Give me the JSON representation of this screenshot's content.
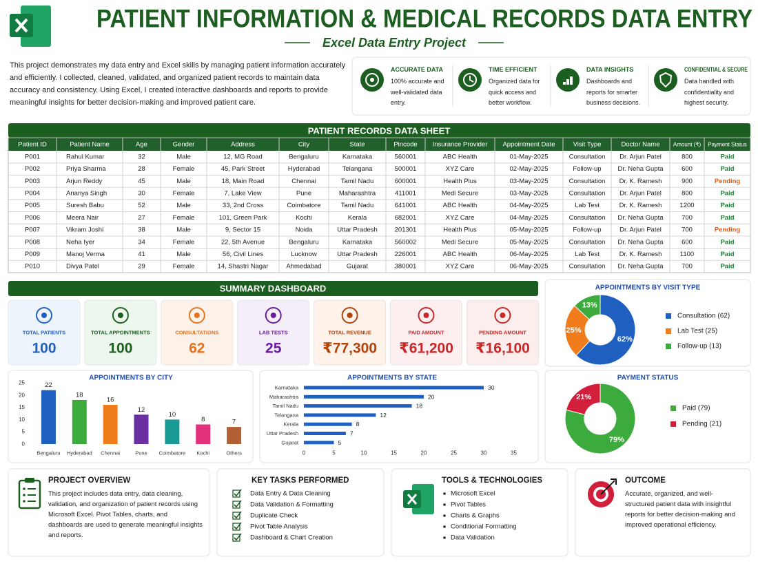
{
  "header": {
    "title": "PATIENT INFORMATION & MEDICAL RECORDS DATA ENTRY",
    "subtitle": "Excel Data Entry Project"
  },
  "intro": "This project demonstrates my data entry and Excel skills by managing patient information accurately and efficiently. I collected, cleaned, validated, and organized patient records to maintain data accuracy and consistency. Using Excel, I created interactive dashboards and reports to provide meaningful insights for better decision-making and improved patient care.",
  "features": [
    {
      "title": "ACCURATE DATA",
      "text": "100% accurate and well-validated data entry."
    },
    {
      "title": "TIME EFFICIENT",
      "text": "Organized data for quick access and better workflow."
    },
    {
      "title": "DATA INSIGHTS",
      "text": "Dashboards and reports for smarter business decisions."
    },
    {
      "title": "CONFIDENTIAL & SECURE",
      "text": "Data handled with confidentiality and highest security."
    }
  ],
  "table": {
    "title": "PATIENT RECORDS DATA SHEET",
    "columns": [
      "Patient ID",
      "Patient Name",
      "Age",
      "Gender",
      "Address",
      "City",
      "State",
      "Pincode",
      "Insurance Provider",
      "Appointment Date",
      "Visit Type",
      "Doctor Name",
      "Amount (₹)",
      "Payment Status"
    ],
    "rows": [
      [
        "P001",
        "Rahul Kumar",
        32,
        "Male",
        "12, MG Road",
        "Bengaluru",
        "Karnataka",
        560001,
        "ABC Health",
        "01-May-2025",
        "Consultation",
        "Dr. Arjun Patel",
        800,
        "Paid"
      ],
      [
        "P002",
        "Priya Sharma",
        28,
        "Female",
        "45, Park Street",
        "Hyderabad",
        "Telangana",
        500001,
        "XYZ Care",
        "02-May-2025",
        "Follow-up",
        "Dr. Neha Gupta",
        600,
        "Paid"
      ],
      [
        "P003",
        "Arjun Reddy",
        45,
        "Male",
        "18, Main Road",
        "Chennai",
        "Tamil Nadu",
        600001,
        "Health Plus",
        "03-May-2025",
        "Consultation",
        "Dr. K. Ramesh",
        900,
        "Pending"
      ],
      [
        "P004",
        "Ananya Singh",
        30,
        "Female",
        "7, Lake View",
        "Pune",
        "Maharashtra",
        411001,
        "Medi Secure",
        "03-May-2025",
        "Consultation",
        "Dr. Arjun Patel",
        800,
        "Paid"
      ],
      [
        "P005",
        "Suresh Babu",
        52,
        "Male",
        "33, 2nd Cross",
        "Coimbatore",
        "Tamil Nadu",
        641001,
        "ABC Health",
        "04-May-2025",
        "Lab Test",
        "Dr. K. Ramesh",
        1200,
        "Paid"
      ],
      [
        "P006",
        "Meera Nair",
        27,
        "Female",
        "101, Green Park",
        "Kochi",
        "Kerala",
        682001,
        "XYZ Care",
        "04-May-2025",
        "Consultation",
        "Dr. Neha Gupta",
        700,
        "Paid"
      ],
      [
        "P007",
        "Vikram Joshi",
        38,
        "Male",
        "9, Sector 15",
        "Noida",
        "Uttar Pradesh",
        201301,
        "Health Plus",
        "05-May-2025",
        "Follow-up",
        "Dr. Arjun Patel",
        700,
        "Pending"
      ],
      [
        "P008",
        "Neha Iyer",
        34,
        "Female",
        "22, 5th Avenue",
        "Bengaluru",
        "Karnataka",
        560002,
        "Medi Secure",
        "05-May-2025",
        "Consultation",
        "Dr. Neha Gupta",
        600,
        "Paid"
      ],
      [
        "P009",
        "Manoj Verma",
        41,
        "Male",
        "56, Civil Lines",
        "Lucknow",
        "Uttar Pradesh",
        226001,
        "ABC Health",
        "06-May-2025",
        "Lab Test",
        "Dr. K. Ramesh",
        1100,
        "Paid"
      ],
      [
        "P010",
        "Divya Patel",
        29,
        "Female",
        "14, Shastri Nagar",
        "Ahmedabad",
        "Gujarat",
        380001,
        "XYZ Care",
        "06-May-2025",
        "Consultation",
        "Dr. Neha Gupta",
        700,
        "Paid"
      ]
    ],
    "status_colors": {
      "Paid": "#1e7e34",
      "Pending": "#e8590c"
    }
  },
  "summary": {
    "title": "SUMMARY DASHBOARD",
    "cards": [
      {
        "label": "TOTAL PATIENTS",
        "value": 100,
        "color": "#1f5fbf",
        "bg": "#eef4fc"
      },
      {
        "label": "TOTAL APPOINTMENTS",
        "value": 100,
        "color": "#1b5e20",
        "bg": "#eef7ee"
      },
      {
        "label": "CONSULTATIONS",
        "value": 62,
        "color": "#e8711a",
        "bg": "#fdf2ea"
      },
      {
        "label": "LAB TESTS",
        "value": 25,
        "color": "#6a1b9a",
        "bg": "#f4eef9"
      },
      {
        "label": "TOTAL REVENUE",
        "value": "₹77,300",
        "color": "#b0420c",
        "bg": "#fdf3ea"
      },
      {
        "label": "PAID AMOUNT",
        "value": "₹61,200",
        "color": "#c62828",
        "bg": "#fdeef0"
      },
      {
        "label": "PENDING AMOUNT",
        "value": "₹16,100",
        "color": "#c62828",
        "bg": "#fdeeee"
      }
    ]
  },
  "chart_data": [
    {
      "type": "donut",
      "title": "APPOINTMENTS BY VISIT TYPE",
      "categories": [
        "Consultation (62)",
        "Lab Test (25)",
        "Follow-up (13)"
      ],
      "values": [
        62,
        25,
        13
      ],
      "value_labels": [
        "62%",
        "25%",
        "13%"
      ],
      "colors": [
        "#1f5fbf",
        "#f07c1c",
        "#3daa3d"
      ],
      "legend": "right"
    },
    {
      "type": "bar",
      "title": "APPOINTMENTS BY CITY",
      "categories": [
        "Bengaluru",
        "Hyderabad",
        "Chennai",
        "Pune",
        "Coimbatore",
        "Kochi",
        "Others"
      ],
      "values": [
        22,
        18,
        16,
        12,
        10,
        8,
        7
      ],
      "colors": [
        "#1f5fbf",
        "#3daa3d",
        "#f07c1c",
        "#6a2fa0",
        "#1a9a94",
        "#e3307a",
        "#b35f36"
      ],
      "ylim": [
        0,
        25
      ],
      "yticks": [
        0,
        5,
        10,
        15,
        20,
        25
      ],
      "grid": false
    },
    {
      "type": "barh",
      "title": "APPOINTMENTS BY STATE",
      "categories": [
        "Karnataka",
        "Maharashtra",
        "Tamil Nadu",
        "Telangana",
        "Kerala",
        "Uttar Pradesh",
        "Gujarat"
      ],
      "values": [
        30,
        20,
        18,
        12,
        8,
        7,
        5
      ],
      "color": "#1f5fbf",
      "xlim": [
        0,
        35
      ],
      "xticks": [
        0,
        5,
        10,
        15,
        20,
        25,
        30,
        35
      ],
      "grid": false
    },
    {
      "type": "donut",
      "title": "PAYMENT STATUS",
      "categories": [
        "Paid (79)",
        "Pending (21)"
      ],
      "values": [
        79,
        21
      ],
      "value_labels": [
        "79%",
        "21%"
      ],
      "colors": [
        "#3daa3d",
        "#d21f3c"
      ],
      "legend": "right"
    }
  ],
  "footer": {
    "overview": {
      "title": "PROJECT OVERVIEW",
      "text": "This project includes data entry, data cleaning, validation, and organization of patient records using Microsoft Excel. Pivot Tables, charts, and dashboards are used to generate meaningful insights and reports."
    },
    "tasks": {
      "title": "KEY TASKS PERFORMED",
      "items": [
        "Data Entry & Data Cleaning",
        "Data Validation & Formatting",
        "Duplicate Check",
        "Pivot Table Analysis",
        "Dashboard & Chart Creation"
      ]
    },
    "tools": {
      "title": "TOOLS & TECHNOLOGIES",
      "items": [
        "Microsoft Excel",
        "Pivot Tables",
        "Charts & Graphs",
        "Conditional Formatting",
        "Data Validation"
      ]
    },
    "outcome": {
      "title": "OUTCOME",
      "text": "Accurate, organized, and well-structured patient data with insightful reports for better decision-making and improved operational efficiency."
    }
  }
}
